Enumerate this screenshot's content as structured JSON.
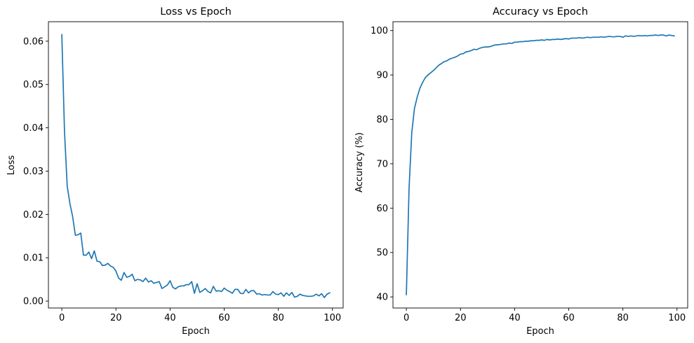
{
  "chart_data": [
    {
      "type": "line",
      "title": "Loss vs Epoch",
      "xlabel": "Epoch",
      "ylabel": "Loss",
      "xlim": [
        -4.95,
        103.95
      ],
      "ylim": [
        -0.0016,
        0.0645
      ],
      "xticks": [
        0,
        20,
        40,
        60,
        80,
        100
      ],
      "yticks": [
        0.0,
        0.01,
        0.02,
        0.03,
        0.04,
        0.05,
        0.06
      ],
      "ytick_labels": [
        "0.00",
        "0.01",
        "0.02",
        "0.03",
        "0.04",
        "0.05",
        "0.06"
      ],
      "grid": false,
      "color": "#1f77b4",
      "series": [
        {
          "name": "Loss",
          "x": [
            0,
            1,
            2,
            3,
            4,
            5,
            6,
            7,
            8,
            9,
            10,
            11,
            12,
            13,
            14,
            15,
            16,
            17,
            18,
            19,
            20,
            21,
            22,
            23,
            24,
            25,
            26,
            27,
            28,
            29,
            30,
            31,
            32,
            33,
            34,
            35,
            36,
            37,
            38,
            39,
            40,
            41,
            42,
            43,
            44,
            45,
            46,
            47,
            48,
            49,
            50,
            51,
            52,
            53,
            54,
            55,
            56,
            57,
            58,
            59,
            60,
            61,
            62,
            63,
            64,
            65,
            66,
            67,
            68,
            69,
            70,
            71,
            72,
            73,
            74,
            75,
            76,
            77,
            78,
            79,
            80,
            81,
            82,
            83,
            84,
            85,
            86,
            87,
            88,
            89,
            90,
            91,
            92,
            93,
            94,
            95,
            96,
            97,
            98,
            99
          ],
          "values": [
            0.0615,
            0.039,
            0.0265,
            0.0225,
            0.0195,
            0.0152,
            0.0153,
            0.0157,
            0.0106,
            0.0106,
            0.0113,
            0.0098,
            0.0116,
            0.0092,
            0.0091,
            0.0082,
            0.0083,
            0.0087,
            0.0081,
            0.0078,
            0.0069,
            0.0053,
            0.0048,
            0.0066,
            0.0055,
            0.0057,
            0.0062,
            0.0047,
            0.005,
            0.0049,
            0.0045,
            0.0053,
            0.0044,
            0.0047,
            0.0041,
            0.0043,
            0.0045,
            0.0029,
            0.0033,
            0.0037,
            0.0047,
            0.0032,
            0.0028,
            0.0033,
            0.0035,
            0.0035,
            0.0038,
            0.0038,
            0.0045,
            0.0018,
            0.004,
            0.002,
            0.0024,
            0.0029,
            0.0022,
            0.0019,
            0.0034,
            0.0023,
            0.0024,
            0.0022,
            0.003,
            0.0025,
            0.0022,
            0.0018,
            0.0027,
            0.0027,
            0.0018,
            0.0017,
            0.0027,
            0.0019,
            0.0024,
            0.0024,
            0.0016,
            0.0017,
            0.0014,
            0.0015,
            0.0014,
            0.0014,
            0.0022,
            0.0016,
            0.0015,
            0.0019,
            0.0011,
            0.0019,
            0.0013,
            0.002,
            0.0009,
            0.0011,
            0.0016,
            0.0013,
            0.0012,
            0.0011,
            0.0011,
            0.0012,
            0.0016,
            0.0012,
            0.0017,
            0.0008,
            0.0016,
            0.0019
          ]
        }
      ]
    },
    {
      "type": "line",
      "title": "Accuracy vs Epoch",
      "xlabel": "Epoch",
      "ylabel": "Accuracy (%)",
      "xlim": [
        -4.95,
        103.95
      ],
      "ylim": [
        37.5,
        102.0
      ],
      "xticks": [
        0,
        20,
        40,
        60,
        80,
        100
      ],
      "yticks": [
        40,
        50,
        60,
        70,
        80,
        90,
        100
      ],
      "ytick_labels": [
        "40",
        "50",
        "60",
        "70",
        "80",
        "90",
        "100"
      ],
      "grid": false,
      "color": "#1f77b4",
      "series": [
        {
          "name": "Accuracy",
          "x": [
            0,
            1,
            2,
            3,
            4,
            5,
            6,
            7,
            8,
            9,
            10,
            11,
            12,
            13,
            14,
            15,
            16,
            17,
            18,
            19,
            20,
            21,
            22,
            23,
            24,
            25,
            26,
            27,
            28,
            29,
            30,
            31,
            32,
            33,
            34,
            35,
            36,
            37,
            38,
            39,
            40,
            41,
            42,
            43,
            44,
            45,
            46,
            47,
            48,
            49,
            50,
            51,
            52,
            53,
            54,
            55,
            56,
            57,
            58,
            59,
            60,
            61,
            62,
            63,
            64,
            65,
            66,
            67,
            68,
            69,
            70,
            71,
            72,
            73,
            74,
            75,
            76,
            77,
            78,
            79,
            80,
            81,
            82,
            83,
            84,
            85,
            86,
            87,
            88,
            89,
            90,
            91,
            92,
            93,
            94,
            95,
            96,
            97,
            98,
            99
          ],
          "values": [
            40.5,
            64.5,
            77.0,
            82.5,
            85.0,
            87.0,
            88.3,
            89.4,
            90.0,
            90.5,
            91.0,
            91.6,
            92.2,
            92.6,
            93.0,
            93.2,
            93.6,
            93.8,
            94.0,
            94.3,
            94.7,
            94.8,
            95.2,
            95.3,
            95.5,
            95.8,
            95.7,
            96.0,
            96.2,
            96.3,
            96.3,
            96.4,
            96.6,
            96.8,
            96.8,
            96.9,
            97.0,
            97.0,
            97.2,
            97.1,
            97.4,
            97.4,
            97.5,
            97.5,
            97.6,
            97.6,
            97.7,
            97.7,
            97.8,
            97.8,
            97.9,
            97.8,
            98.0,
            97.9,
            98.0,
            98.0,
            98.1,
            98.0,
            98.1,
            98.2,
            98.1,
            98.3,
            98.3,
            98.3,
            98.4,
            98.3,
            98.4,
            98.5,
            98.4,
            98.5,
            98.5,
            98.5,
            98.6,
            98.5,
            98.6,
            98.7,
            98.6,
            98.6,
            98.7,
            98.7,
            98.5,
            98.8,
            98.7,
            98.8,
            98.7,
            98.8,
            98.9,
            98.8,
            98.9,
            98.8,
            98.9,
            98.9,
            99.0,
            98.9,
            99.0,
            99.0,
            98.8,
            99.0,
            98.9,
            98.8
          ]
        }
      ]
    }
  ]
}
